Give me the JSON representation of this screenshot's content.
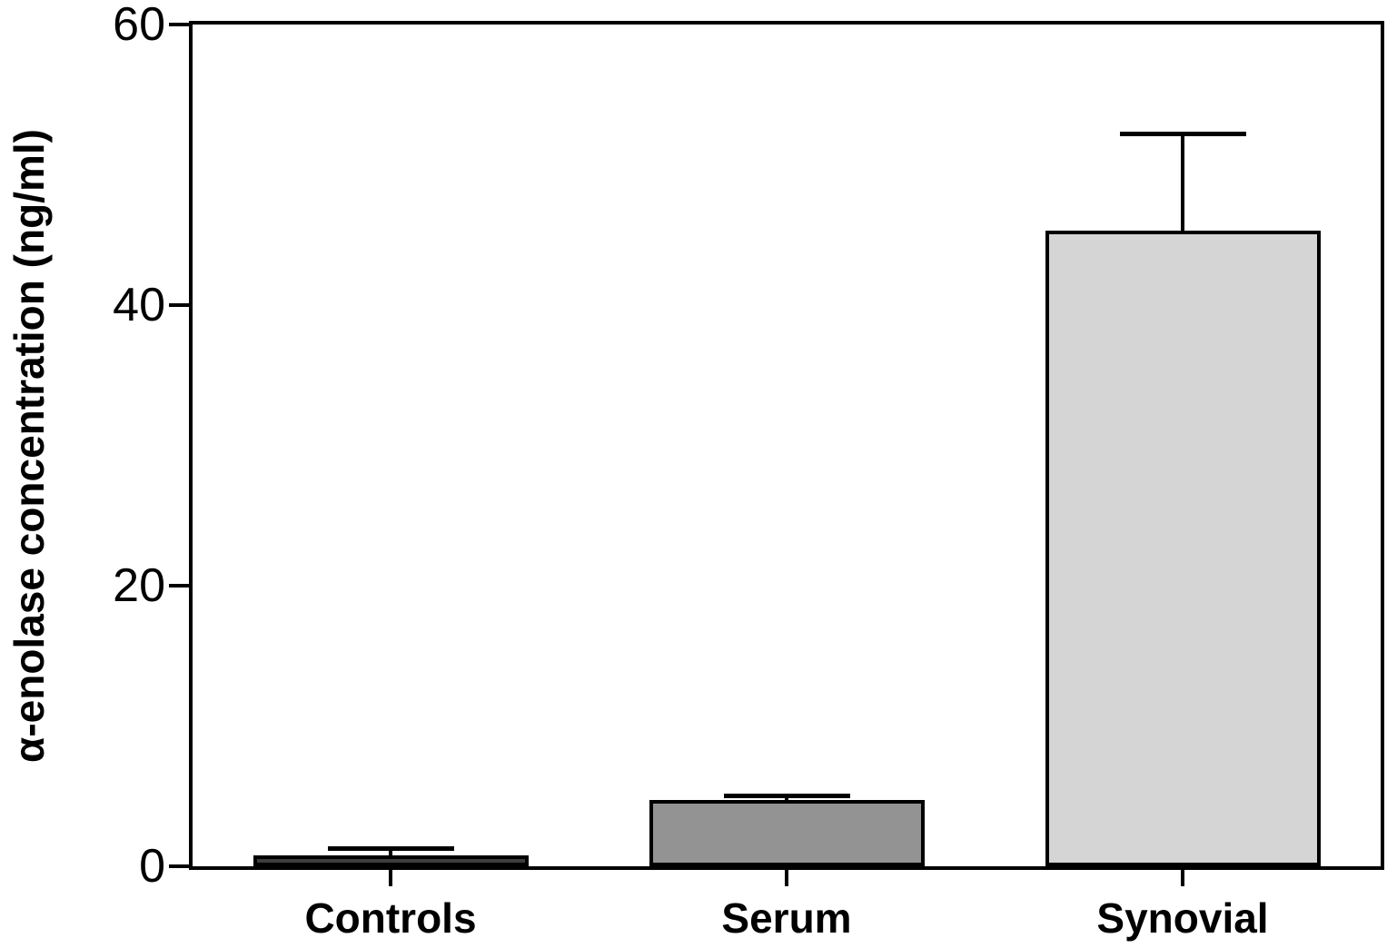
{
  "chart_data": {
    "type": "bar",
    "categories": [
      "Controls",
      "Serum",
      "Synovial"
    ],
    "values": [
      0.8,
      4.7,
      45.3
    ],
    "errors": [
      0.4,
      0.3,
      6.9
    ],
    "bar_colors": [
      "#3d3d3d",
      "#939393",
      "#d5d5d5"
    ],
    "bar_border_color": "#000000",
    "title": "",
    "xlabel": "",
    "ylabel": "α-enolase concentration (ng/ml)",
    "yticks": [
      0,
      20,
      40,
      60
    ],
    "ylim": [
      0,
      60
    ],
    "grid": false,
    "legend": "none",
    "plot_border": "full-box",
    "error_bar_direction": "up"
  }
}
